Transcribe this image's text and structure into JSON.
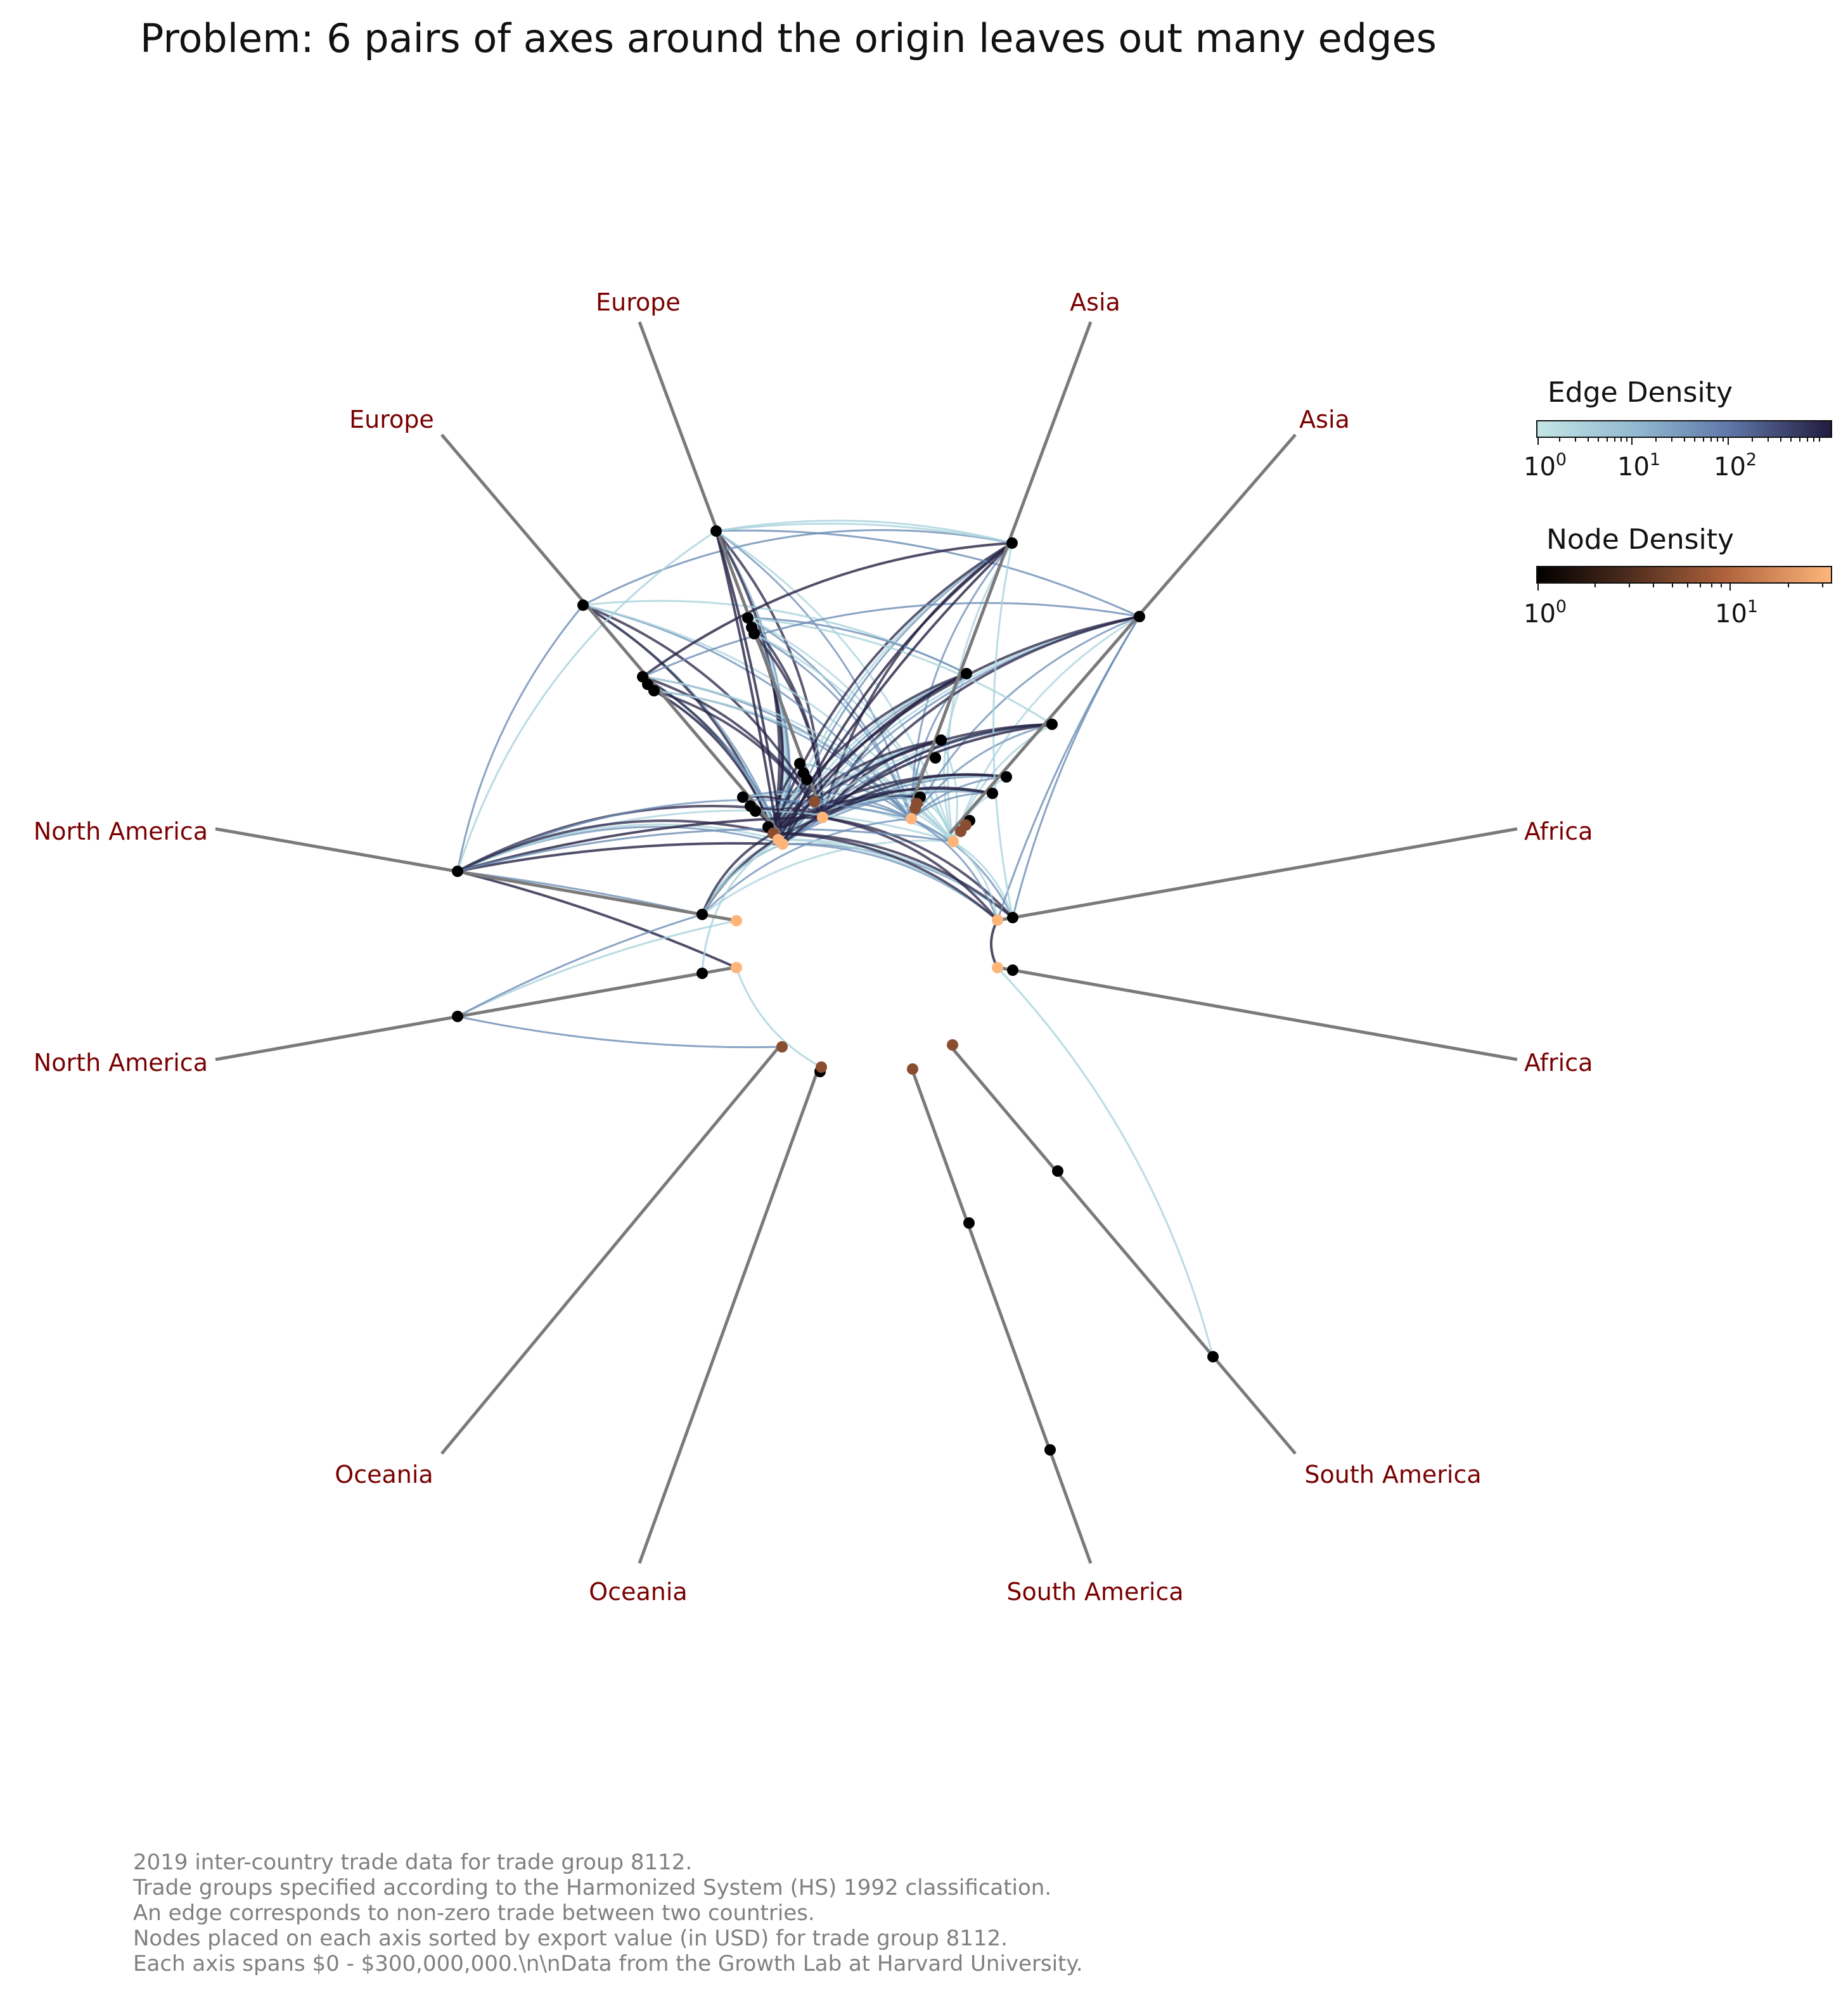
{
  "title": "Problem: 6 pairs of axes around the origin leaves out many edges",
  "colors": {
    "axis_line": "#7a7a7a",
    "axis_label": "#7a0000",
    "footer": "#808080",
    "edge_low": "#a9d3dc",
    "edge_mid": "#6b8db5",
    "edge_high": "#262244",
    "node_low": "#000000",
    "node_mid": "#8a4d2f",
    "node_high": "#ffb57a"
  },
  "groups": [
    {
      "name": "North America",
      "labels": [
        "North America",
        "North America"
      ]
    },
    {
      "name": "Europe",
      "labels": [
        "Europe",
        "Europe"
      ]
    },
    {
      "name": "Asia",
      "labels": [
        "Asia",
        "Asia"
      ]
    },
    {
      "name": "Africa",
      "labels": [
        "Africa",
        "Africa"
      ]
    },
    {
      "name": "South America",
      "labels": [
        "South America",
        "South America"
      ]
    },
    {
      "name": "Oceania",
      "labels": [
        "Oceania",
        "Oceania"
      ]
    }
  ],
  "legend": {
    "edge": {
      "title": "Edge Density",
      "ticks": [
        {
          "base": "10",
          "exp": "0"
        },
        {
          "base": "10",
          "exp": "1"
        },
        {
          "base": "10",
          "exp": "2"
        }
      ]
    },
    "node": {
      "title": "Node Density",
      "ticks": [
        {
          "base": "10",
          "exp": "0"
        },
        {
          "base": "10",
          "exp": "1"
        }
      ]
    }
  },
  "footer": [
    "2019 inter-country trade data for trade group 8112.",
    "Trade groups specified according to the Harmonized System (HS) 1992 classification.",
    "An edge corresponds to non-zero trade between two countries.",
    "Nodes placed on each axis sorted by export value (in USD) for trade group 8112.",
    "Each axis spans $0 - $300,000,000.\\n\\nData from the Growth Lab at Harvard University."
  ]
}
